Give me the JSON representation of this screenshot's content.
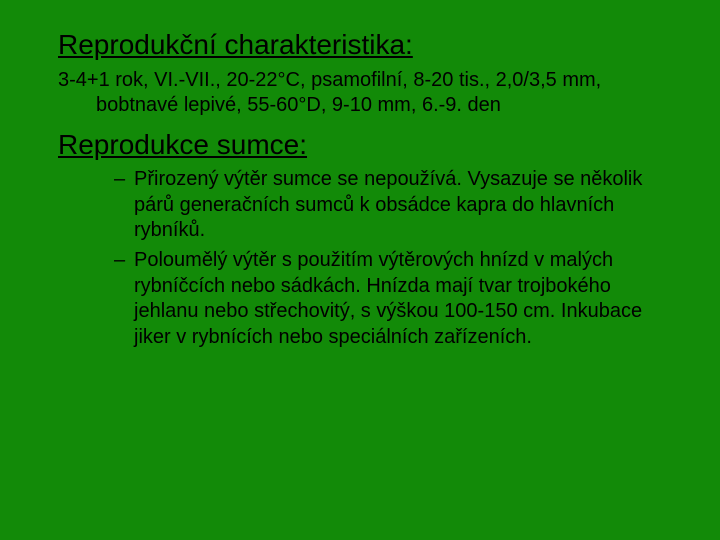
{
  "background_color": "#128a08",
  "text_color": "#000000",
  "font_family": "Comic Sans MS",
  "heading_fontsize": 28,
  "body_fontsize": 20,
  "section1": {
    "title": "Reprodukční charakteristika:",
    "body": "3-4+1 rok, VI.-VII., 20-22°C, psamofilní, 8-20 tis., 2,0/3,5 mm, bobtnavé lepivé, 55-60°D, 9-10 mm, 6.-9. den"
  },
  "section2": {
    "title": "Reprodukce sumce:",
    "items": [
      "Přirozený výtěr sumce se nepoužívá. Vysazuje se několik párů generačních sumců k obsádce kapra do hlavních rybníků.",
      "Poloumělý výtěr s použitím výtěrových hnízd v malých rybníčcích nebo sádkách. Hnízda mají tvar trojbokého jehlanu nebo střechovitý, s výškou 100-150 cm. Inkubace jiker v rybnících nebo speciálních zařízeních."
    ]
  }
}
